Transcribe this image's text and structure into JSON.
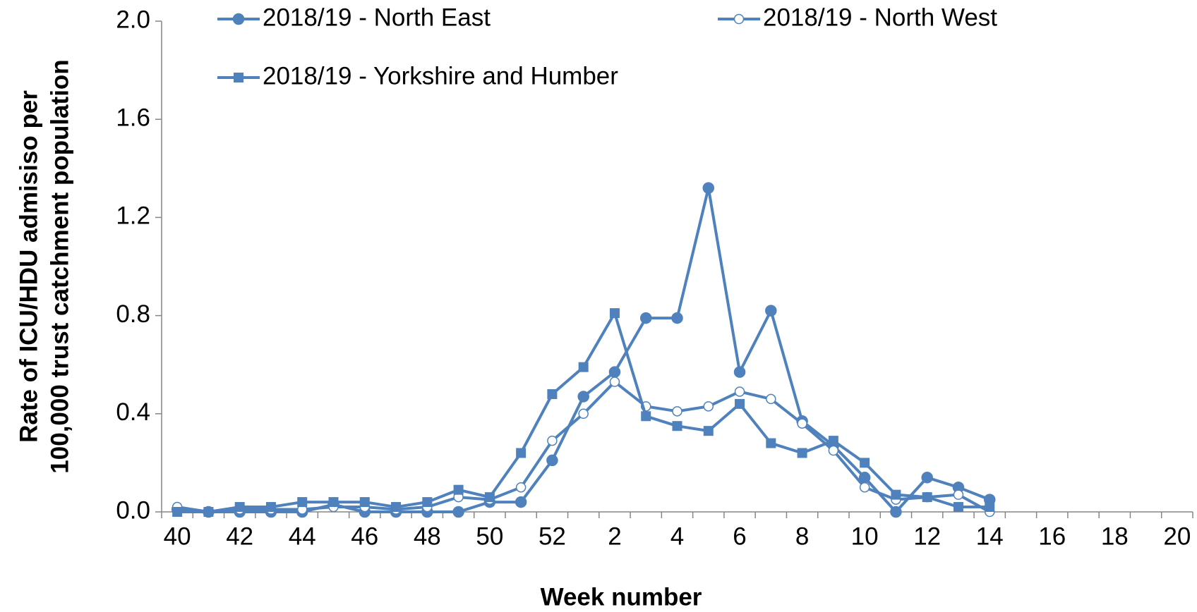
{
  "chart_data": {
    "type": "line",
    "x_label": "Week number",
    "y_label": [
      "Rate of ICU/HDU admisiso  per",
      "100,000 trust catchment population"
    ],
    "categories": [
      "40",
      null,
      "42",
      null,
      "44",
      null,
      "46",
      null,
      "48",
      null,
      "50",
      null,
      "52",
      null,
      "2",
      null,
      "4",
      null,
      "6",
      null,
      "8",
      null,
      "10",
      null,
      "12",
      null,
      "14",
      null,
      "16",
      null,
      "18",
      null,
      "20"
    ],
    "ylim": [
      0,
      2
    ],
    "yticks": [
      {
        "value": 0,
        "label": "0.0"
      },
      0.4,
      0.8,
      1.2,
      1.6,
      {
        "value": 2,
        "label": "2.0"
      }
    ],
    "series": [
      {
        "name": "2018/19 - North East",
        "color": "#4f81bd",
        "marker": "circle",
        "values": [
          0.01,
          0.0,
          0.0,
          0.0,
          0.0,
          0.03,
          0.0,
          0.0,
          0.0,
          0.0,
          0.04,
          0.04,
          0.21,
          0.47,
          0.57,
          0.79,
          0.79,
          1.32,
          0.57,
          0.82,
          0.37,
          0.27,
          0.14,
          0.0,
          0.14,
          0.1,
          0.05,
          null,
          null,
          null,
          null,
          null,
          null
        ]
      },
      {
        "name": "2018/19 - North West",
        "color": "#4f81bd",
        "marker": "open-circle",
        "values": [
          0.02,
          0.0,
          0.01,
          0.01,
          0.01,
          0.02,
          0.02,
          0.01,
          0.02,
          0.06,
          0.05,
          0.1,
          0.29,
          0.4,
          0.53,
          0.43,
          0.41,
          0.43,
          0.49,
          0.46,
          0.36,
          0.25,
          0.1,
          0.05,
          0.06,
          0.07,
          0.0,
          null,
          null,
          null,
          null,
          null,
          null
        ]
      },
      {
        "name": "2018/19 - Yorkshire and Humber",
        "color": "#4f81bd",
        "marker": "square",
        "values": [
          0.0,
          0.0,
          0.02,
          0.02,
          0.04,
          0.04,
          0.04,
          0.02,
          0.04,
          0.09,
          0.06,
          0.24,
          0.48,
          0.59,
          0.81,
          0.39,
          0.35,
          0.33,
          0.44,
          0.28,
          0.24,
          0.29,
          0.2,
          0.07,
          0.06,
          0.02,
          0.02,
          null,
          null,
          null,
          null,
          null,
          null
        ]
      }
    ]
  }
}
